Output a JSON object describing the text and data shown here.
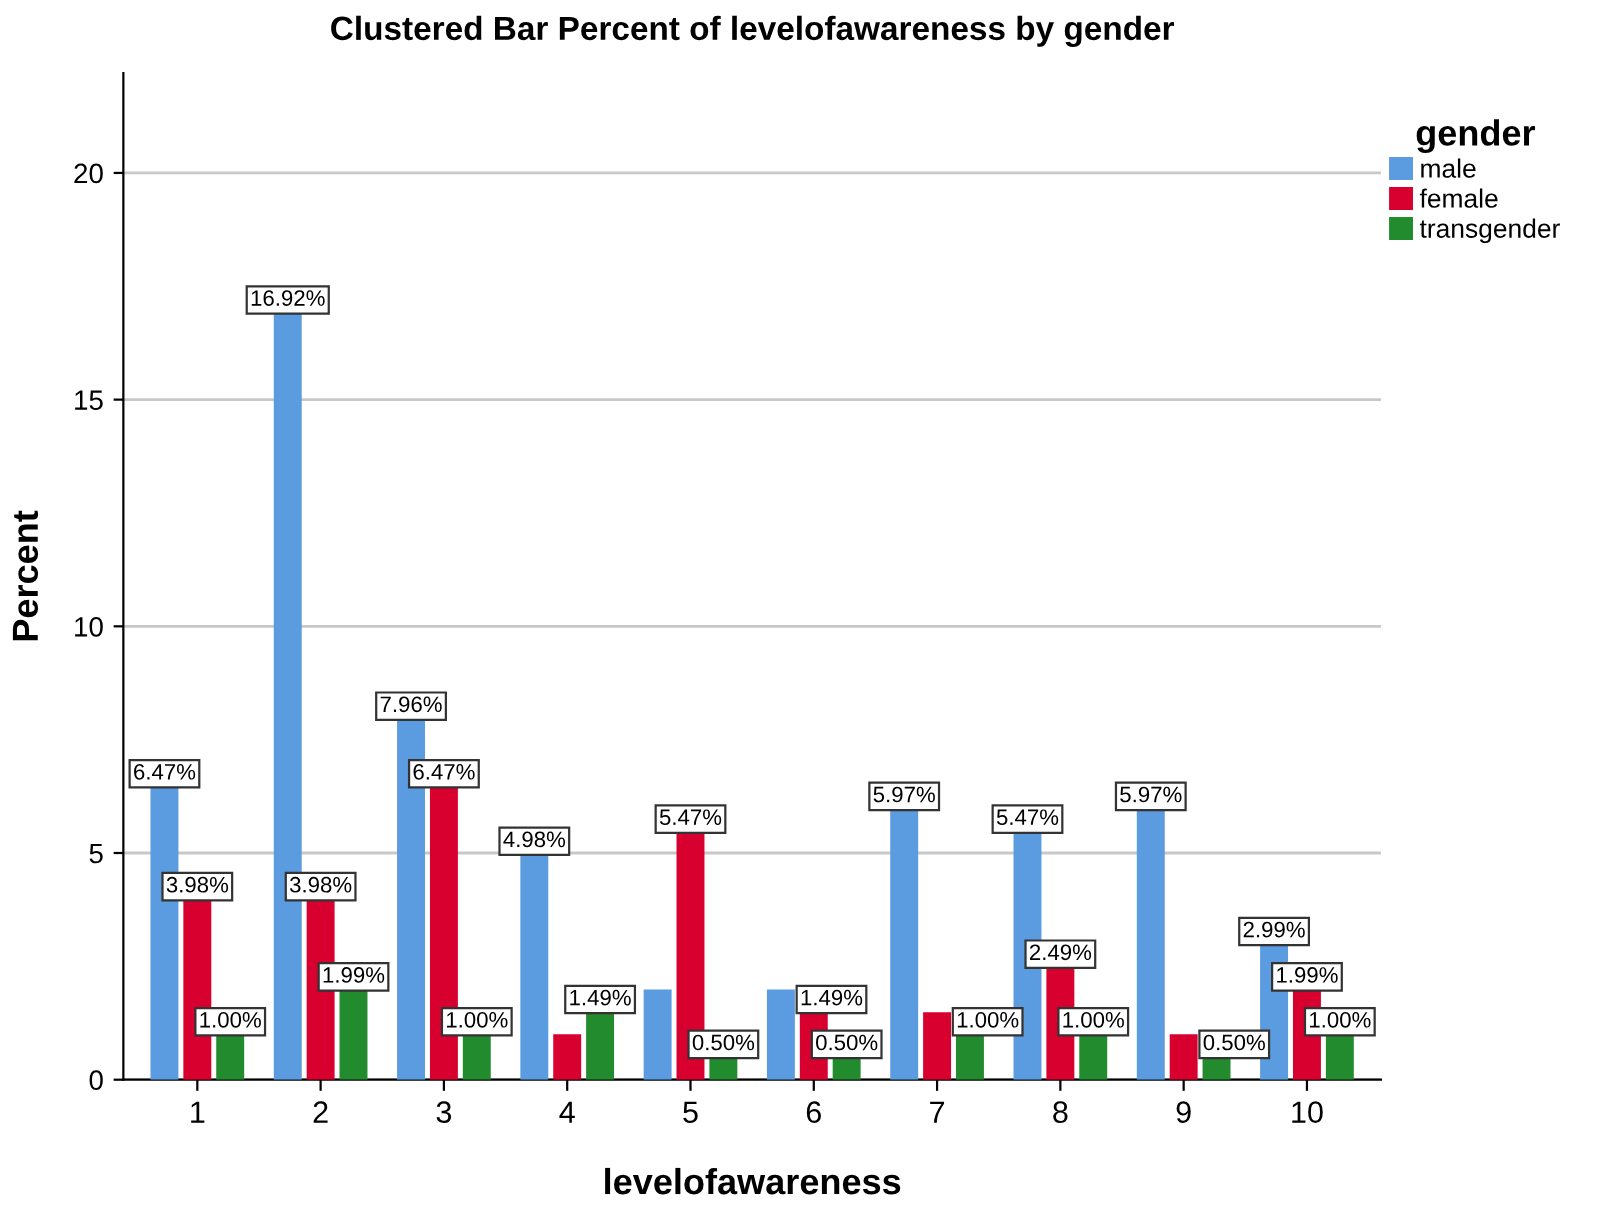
{
  "chart_data": {
    "type": "bar",
    "title": "Clustered Bar Percent of levelofawareness by gender",
    "xlabel": "levelofawareness",
    "ylabel": "Percent",
    "legend_title": "gender",
    "categories": [
      "1",
      "2",
      "3",
      "4",
      "5",
      "6",
      "7",
      "8",
      "9",
      "10"
    ],
    "series": [
      {
        "name": "male",
        "color": "#5b9bdf",
        "values": [
          6.47,
          16.92,
          7.96,
          4.98,
          1.99,
          1.99,
          5.97,
          5.47,
          5.97,
          2.99
        ],
        "value_labels": [
          "6.47%",
          "16.92%",
          "7.96%",
          "4.98%",
          null,
          null,
          "5.97%",
          "5.47%",
          "5.97%",
          "2.99%"
        ]
      },
      {
        "name": "female",
        "color": "#d8002e",
        "values": [
          3.98,
          3.98,
          6.47,
          1.0,
          5.47,
          1.49,
          1.49,
          2.49,
          1.0,
          1.99
        ],
        "value_labels": [
          "3.98%",
          "3.98%",
          "6.47%",
          null,
          "5.47%",
          "1.49%",
          null,
          "2.49%",
          null,
          "1.99%"
        ]
      },
      {
        "name": "transgender",
        "color": "#228b2e",
        "values": [
          1.0,
          1.99,
          1.0,
          1.49,
          0.5,
          0.5,
          1.0,
          1.0,
          0.5,
          1.0
        ],
        "value_labels": [
          "1.00%",
          "1.99%",
          "1.00%",
          "1.49%",
          "0.50%",
          "0.50%",
          "1.00%",
          "1.00%",
          "0.50%",
          "1.00%"
        ]
      }
    ],
    "ylim": [
      0,
      22.2
    ],
    "yticks": [
      0,
      5,
      10,
      15,
      20
    ],
    "grid": "y",
    "legend": "top right"
  }
}
